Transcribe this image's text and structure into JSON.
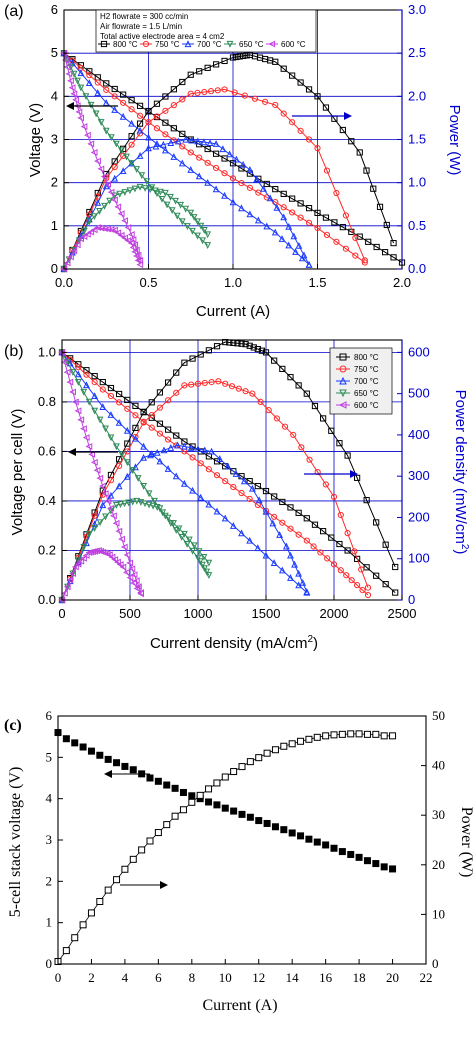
{
  "figure": {
    "panel_a_letter": "(a)",
    "panel_b_letter": "(b)",
    "panel_c_letter": "(c)"
  },
  "colors": {
    "800": "#000000",
    "750": "#ff2a2a",
    "700": "#1a3aff",
    "650": "#2e8b57",
    "600": "#c040e0",
    "axis_blue": "#0000cc"
  },
  "chart_data": [
    {
      "id": "a",
      "type": "line",
      "xlabel": "Current (A)",
      "ylabel": "Voltage (V)",
      "y2label": "Power (W)",
      "xlim": [
        0,
        2.0
      ],
      "ylim": [
        0,
        6
      ],
      "y2lim": [
        0,
        3.0
      ],
      "xticks": [
        "0.0",
        "0.5",
        "1.0",
        "1.5",
        "2.0"
      ],
      "yticks": [
        "0",
        "1",
        "2",
        "3",
        "4",
        "5",
        "6"
      ],
      "y2ticks": [
        "0.0",
        "0.5",
        "1.0",
        "1.5",
        "2.0",
        "2.5",
        "3.0"
      ],
      "grid": true,
      "annotation": [
        "H2 flowrate = 300 cc/min",
        "Air flowrate = 1.5 L/min",
        "Total active electrode area = 4 cm2"
      ],
      "legend_position": "top",
      "series": [
        {
          "name": "800 °C",
          "color_key": "800",
          "marker": "square",
          "voltage": {
            "x": [
              0,
              0.25,
              0.5,
              0.75,
              1.0,
              1.25,
              1.5,
              1.75,
              2.0
            ],
            "y": [
              5.0,
              4.3,
              3.65,
              3.0,
              2.45,
              1.85,
              1.3,
              0.75,
              0.15
            ]
          },
          "power": {
            "x": [
              0,
              0.25,
              0.5,
              0.75,
              1.0,
              1.1,
              1.25,
              1.5,
              1.75,
              1.95
            ],
            "y": [
              0,
              1.1,
              1.83,
              2.25,
              2.45,
              2.48,
              2.4,
              2.0,
              1.35,
              0.3
            ]
          }
        },
        {
          "name": "750 °C",
          "color_key": "750",
          "marker": "circle",
          "voltage": {
            "x": [
              0,
              0.25,
              0.5,
              0.75,
              1.0,
              1.25,
              1.5,
              1.78
            ],
            "y": [
              5.0,
              4.15,
              3.4,
              2.7,
              2.1,
              1.55,
              0.95,
              0.15
            ]
          },
          "power": {
            "x": [
              0,
              0.25,
              0.5,
              0.75,
              0.95,
              1.25,
              1.5,
              1.78
            ],
            "y": [
              0,
              1.05,
              1.7,
              2.03,
              2.08,
              1.9,
              1.4,
              0.1
            ]
          }
        },
        {
          "name": "700 °C",
          "color_key": "700",
          "marker": "triangle-up",
          "voltage": {
            "x": [
              0,
              0.25,
              0.5,
              0.75,
              1.0,
              1.25,
              1.45
            ],
            "y": [
              5.0,
              3.85,
              3.05,
              2.3,
              1.55,
              0.85,
              0.1
            ]
          },
          "power": {
            "x": [
              0,
              0.25,
              0.5,
              0.72,
              0.9,
              1.1,
              1.3,
              1.45
            ],
            "y": [
              0,
              0.96,
              1.4,
              1.5,
              1.45,
              1.15,
              0.6,
              0.05
            ]
          }
        },
        {
          "name": "650 °C",
          "color_key": "650",
          "marker": "triangle-down",
          "voltage": {
            "x": [
              0,
              0.1,
              0.25,
              0.4,
              0.55,
              0.7,
              0.85
            ],
            "y": [
              5.0,
              4.2,
              3.2,
              2.45,
              1.75,
              1.1,
              0.55
            ]
          },
          "power": {
            "x": [
              0,
              0.15,
              0.3,
              0.45,
              0.6,
              0.75,
              0.85
            ],
            "y": [
              0,
              0.55,
              0.85,
              0.95,
              0.88,
              0.65,
              0.4
            ]
          }
        },
        {
          "name": "600 °C",
          "color_key": "600",
          "marker": "triangle-left",
          "voltage": {
            "x": [
              0,
              0.05,
              0.1,
              0.2,
              0.3,
              0.4,
              0.45
            ],
            "y": [
              5.0,
              4.2,
              3.5,
              2.5,
              1.6,
              0.8,
              0.2
            ]
          },
          "power": {
            "x": [
              0,
              0.1,
              0.2,
              0.3,
              0.4,
              0.45
            ],
            "y": [
              0,
              0.35,
              0.48,
              0.45,
              0.3,
              0.05
            ]
          }
        }
      ]
    },
    {
      "id": "b",
      "type": "line",
      "xlabel": "Current density (mA/cm",
      "xlabel_sup": "2",
      "xlabel_end": ")",
      "ylabel": "Voltage per cell (V)",
      "y2label": "Power density (mW/cm",
      "y2label_sup": "2",
      "y2label_end": ")",
      "xlim": [
        0,
        2500
      ],
      "ylim": [
        0,
        1.05
      ],
      "y2lim": [
        0,
        630
      ],
      "xticks": [
        "0",
        "500",
        "1000",
        "1500",
        "2000",
        "2500"
      ],
      "yticks": [
        "0.0",
        "0.2",
        "0.4",
        "0.6",
        "0.8",
        "1.0"
      ],
      "y2ticks": [
        "0",
        "100",
        "200",
        "300",
        "400",
        "500",
        "600"
      ],
      "grid": true,
      "legend_position": "top-right",
      "series": [
        {
          "name": "800 °C",
          "color_key": "800",
          "marker": "square",
          "voltage": {
            "x": [
              0,
              300,
              600,
              900,
              1200,
              1500,
              1800,
              2100,
              2450
            ],
            "y": [
              1.0,
              0.88,
              0.76,
              0.64,
              0.54,
              0.44,
              0.33,
              0.2,
              0.03
            ]
          },
          "power": {
            "x": [
              0,
              300,
              600,
              900,
              1200,
              1350,
              1500,
              1800,
              2100,
              2450
            ],
            "y": [
              0,
              265,
              455,
              575,
              625,
              620,
              600,
              500,
              350,
              80
            ]
          }
        },
        {
          "name": "750 °C",
          "color_key": "750",
          "marker": "circle",
          "voltage": {
            "x": [
              0,
              300,
              600,
              900,
              1200,
              1500,
              1800,
              2050,
              2250
            ],
            "y": [
              1.0,
              0.85,
              0.72,
              0.6,
              0.48,
              0.36,
              0.24,
              0.12,
              0.02
            ]
          },
          "power": {
            "x": [
              0,
              300,
              600,
              900,
              1150,
              1400,
              1700,
              2000,
              2250
            ],
            "y": [
              0,
              255,
              430,
              520,
              530,
              500,
              400,
              250,
              30
            ]
          }
        },
        {
          "name": "700 °C",
          "color_key": "700",
          "marker": "triangle-up",
          "voltage": {
            "x": [
              0,
              300,
              600,
              900,
              1200,
              1500,
              1800
            ],
            "y": [
              1.0,
              0.78,
              0.62,
              0.47,
              0.33,
              0.18,
              0.03
            ]
          },
          "power": {
            "x": [
              0,
              300,
              600,
              850,
              1100,
              1400,
              1650,
              1800
            ],
            "y": [
              0,
              230,
              345,
              375,
              360,
              270,
              130,
              20
            ]
          }
        },
        {
          "name": "650 °C",
          "color_key": "650",
          "marker": "triangle-down",
          "voltage": {
            "x": [
              0,
              200,
              400,
              600,
              800,
              1000,
              1080
            ],
            "y": [
              1.0,
              0.8,
              0.62,
              0.46,
              0.31,
              0.17,
              0.1
            ]
          },
          "power": {
            "x": [
              0,
              200,
              400,
              550,
              700,
              900,
              1080
            ],
            "y": [
              0,
              160,
              230,
              240,
              225,
              160,
              90
            ]
          }
        },
        {
          "name": "600 °C",
          "color_key": "600",
          "marker": "triangle-left",
          "voltage": {
            "x": [
              0,
              100,
              200,
              300,
              400,
              500,
              580
            ],
            "y": [
              1.0,
              0.8,
              0.62,
              0.46,
              0.31,
              0.15,
              0.03
            ]
          },
          "power": {
            "x": [
              0,
              100,
              200,
              270,
              350,
              450,
              580
            ],
            "y": [
              0,
              80,
              115,
              120,
              110,
              80,
              15
            ]
          }
        }
      ]
    },
    {
      "id": "c",
      "type": "scatter",
      "xlabel": "Current (A)",
      "ylabel": "5-cell stack voltage (V)",
      "y2label": "Power (W)",
      "xlim": [
        0,
        22
      ],
      "ylim": [
        0,
        6
      ],
      "y2lim": [
        0,
        50
      ],
      "xticks": [
        "0",
        "2",
        "4",
        "6",
        "8",
        "10",
        "12",
        "14",
        "16",
        "18",
        "20",
        "22"
      ],
      "yticks": [
        "0",
        "1",
        "2",
        "3",
        "4",
        "5",
        "6"
      ],
      "y2ticks": [
        "0",
        "10",
        "20",
        "30",
        "40",
        "50"
      ],
      "grid": false,
      "series": [
        {
          "name": "",
          "marker": "filled-square",
          "x": [
            0,
            0.5,
            1,
            1.5,
            2,
            2.5,
            3,
            3.5,
            4,
            4.5,
            5,
            5.5,
            6,
            6.5,
            7,
            7.5,
            8,
            8.5,
            9,
            9.5,
            10,
            10.5,
            11,
            11.5,
            12,
            12.5,
            13,
            13.5,
            14,
            14.5,
            15,
            15.5,
            16,
            16.5,
            17,
            17.5,
            18,
            18.5,
            19,
            19.5,
            20
          ],
          "y": [
            5.6,
            5.45,
            5.35,
            5.25,
            5.15,
            5.05,
            4.95,
            4.87,
            4.78,
            4.7,
            4.6,
            4.5,
            4.42,
            4.33,
            4.25,
            4.15,
            4.07,
            4.0,
            3.92,
            3.85,
            3.77,
            3.7,
            3.62,
            3.55,
            3.47,
            3.4,
            3.32,
            3.25,
            3.17,
            3.1,
            3.02,
            2.95,
            2.88,
            2.8,
            2.72,
            2.65,
            2.58,
            2.5,
            2.43,
            2.35,
            2.3
          ]
        },
        {
          "name": "",
          "marker": "open-square",
          "x": [
            0,
            0.5,
            1,
            1.5,
            2,
            2.5,
            3,
            3.5,
            4,
            4.5,
            5,
            5.5,
            6,
            6.5,
            7,
            7.5,
            8,
            8.5,
            9,
            9.5,
            10,
            10.5,
            11,
            11.5,
            12,
            12.5,
            13,
            13.5,
            14,
            14.5,
            15,
            15.5,
            16,
            16.5,
            17,
            17.5,
            18,
            18.5,
            19,
            19.5,
            20
          ],
          "y": [
            0.5,
            2.7,
            5.3,
            7.9,
            10.3,
            12.6,
            14.9,
            17.0,
            19.1,
            21.1,
            23.0,
            24.8,
            26.5,
            28.1,
            29.8,
            31.1,
            32.6,
            34.0,
            35.3,
            36.5,
            37.7,
            38.8,
            39.8,
            40.8,
            41.6,
            42.5,
            43.2,
            43.9,
            44.4,
            44.9,
            45.3,
            45.7,
            46.0,
            46.2,
            46.3,
            46.4,
            46.4,
            46.3,
            46.3,
            46.0,
            46.0
          ]
        }
      ]
    }
  ]
}
